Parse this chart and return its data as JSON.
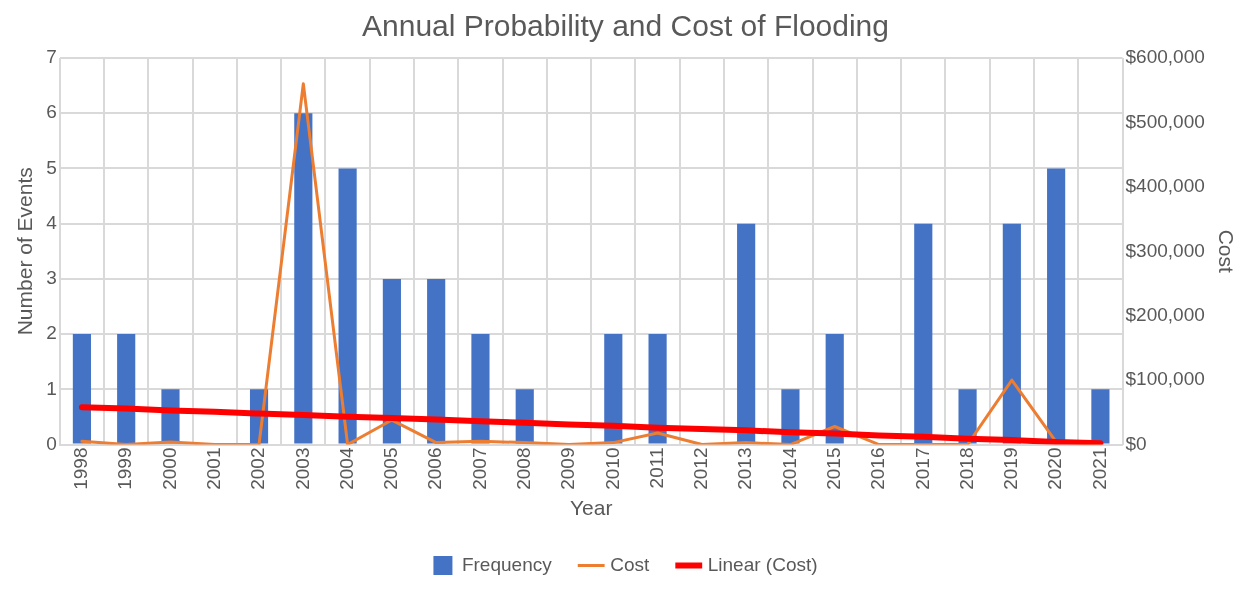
{
  "chart_data": {
    "type": "bar",
    "title": "Annual Probability and Cost of Flooding",
    "xlabel": "Year",
    "ylabel": "Number of Events",
    "y2label": "Cost",
    "categories": [
      "1998",
      "1999",
      "2000",
      "2001",
      "2002",
      "2003",
      "2004",
      "2005",
      "2006",
      "2007",
      "2008",
      "2009",
      "2010",
      "2011",
      "2012",
      "2013",
      "2014",
      "2015",
      "2016",
      "2017",
      "2018",
      "2019",
      "2020",
      "2021"
    ],
    "series": [
      {
        "name": "Frequency",
        "color": "#4472c4",
        "values": [
          2,
          2,
          1,
          0,
          1,
          6,
          5,
          3,
          3,
          2,
          1,
          0,
          2,
          2,
          0,
          4,
          1,
          2,
          0,
          4,
          1,
          4,
          5,
          1
        ]
      },
      {
        "name": "Cost",
        "type": "line",
        "axis": "y2",
        "color": "#ed7d31",
        "values": [
          5000,
          0,
          4000,
          0,
          0,
          560000,
          0,
          38000,
          3000,
          5000,
          3000,
          0,
          3000,
          18000,
          0,
          3000,
          0,
          28000,
          0,
          0,
          0,
          100000,
          4000,
          0
        ]
      },
      {
        "name": "Linear (Cost)",
        "type": "line",
        "axis": "y2",
        "color": "#ff0000",
        "values": [
          58000,
          56000,
          53000,
          51000,
          48000,
          46000,
          43000,
          41000,
          39000,
          36000,
          34000,
          31000,
          29000,
          26000,
          24000,
          22000,
          19000,
          17000,
          14000,
          12000,
          9000,
          7000,
          4000,
          2000
        ]
      }
    ],
    "ylim": [
      0,
      7
    ],
    "yticks": [
      0,
      1,
      2,
      3,
      4,
      5,
      6,
      7
    ],
    "y2lim": [
      0,
      600000
    ],
    "y2ticks": [
      {
        "value": 0,
        "label": "$0"
      },
      {
        "value": 100000,
        "label": "$100,000"
      },
      {
        "value": 200000,
        "label": "$200,000"
      },
      {
        "value": 300000,
        "label": "$300,000"
      },
      {
        "value": 400000,
        "label": "$400,000"
      },
      {
        "value": 500000,
        "label": "$500,000"
      },
      {
        "value": 600000,
        "label": "$600,000"
      }
    ],
    "grid": true,
    "legend": "bottom",
    "marker": "none"
  }
}
